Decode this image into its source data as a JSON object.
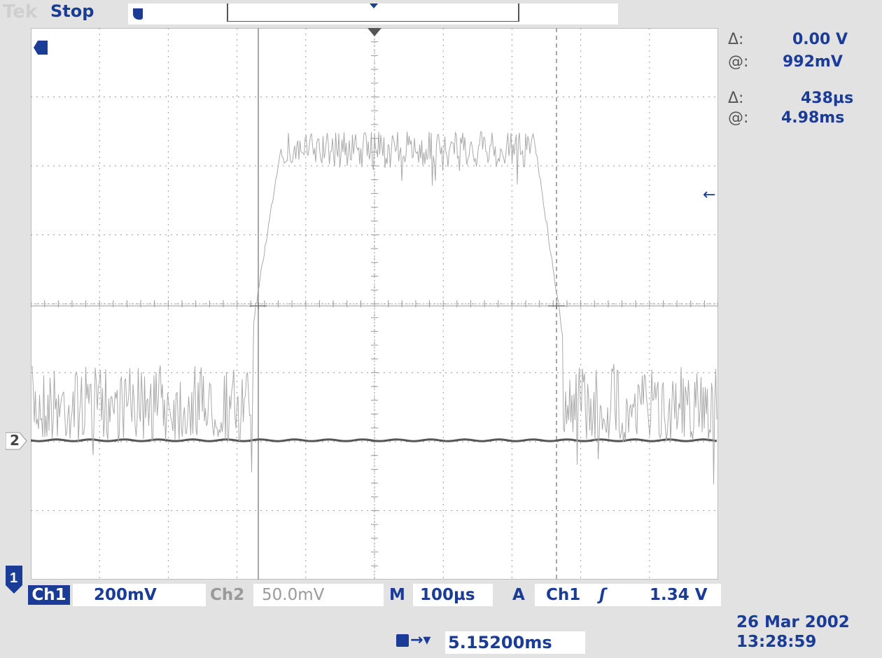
{
  "header": {
    "brand": "Tek",
    "run_state": "Stop"
  },
  "cursors": {
    "volt_delta_label": "Δ:",
    "volt_delta": "0.00 V",
    "volt_at_label": "@:",
    "volt_at": "992mV",
    "time_delta_label": "Δ:",
    "time_delta": "438µs",
    "time_at_label": "@:",
    "time_at": "4.98ms"
  },
  "bottom_bar": {
    "ch1_label": "Ch1",
    "ch1_scale": "200mV",
    "ch2_label": "Ch2",
    "ch2_scale": "50.0mV",
    "timebase_label": "M",
    "timebase": "100µs",
    "trigger_label": "A",
    "trigger_source": "Ch1",
    "trigger_slope": "ʃ",
    "trigger_level": "1.34 V"
  },
  "trigger_position": "5.15200ms",
  "channel_markers": {
    "ch1": "1",
    "ch2": "2"
  },
  "date": "26 Mar  2002",
  "time": "13:28:59",
  "colors": {
    "text_blue": "#1a3c96",
    "ch1_trace": "#a9a9a9",
    "ch2_trace": "#555555",
    "graticule": "#9a9a9a"
  }
}
